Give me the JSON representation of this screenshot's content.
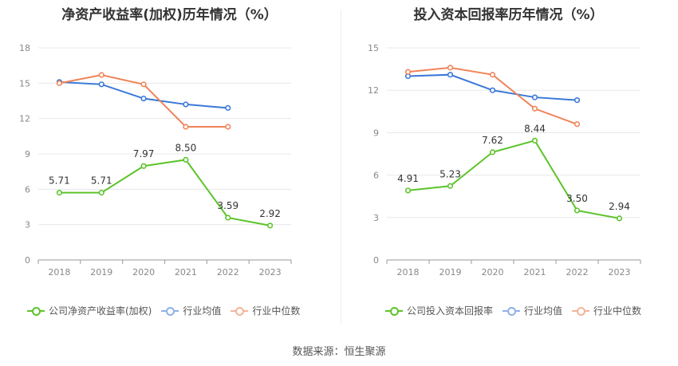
{
  "source_text": "数据来源：恒生聚源",
  "colors": {
    "company": "#5cc42b",
    "avg": "#3a78d8",
    "median": "#f0845a",
    "grid": "#e8e8e8",
    "axis": "#999999",
    "tick": "#888888"
  },
  "chart_data": [
    {
      "type": "line",
      "title": "净资产收益率(加权)历年情况（%）",
      "categories": [
        "2018",
        "2019",
        "2020",
        "2021",
        "2022",
        "2023"
      ],
      "ylim": [
        0,
        18
      ],
      "yticks": [
        0,
        3,
        6,
        9,
        12,
        15,
        18
      ],
      "grid": true,
      "legend_position": "bottom",
      "series": [
        {
          "name": "公司净资产收益率(加权)",
          "key": "company",
          "values": [
            5.71,
            5.71,
            7.97,
            8.5,
            3.59,
            2.92
          ],
          "labels": [
            "5.71",
            "5.71",
            "7.97",
            "8.50",
            "3.59",
            "2.92"
          ]
        },
        {
          "name": "行业均值",
          "key": "avg",
          "values": [
            15.1,
            14.9,
            13.7,
            13.2,
            12.9,
            null
          ]
        },
        {
          "name": "行业中位数",
          "key": "median",
          "values": [
            15.0,
            15.7,
            14.9,
            11.3,
            11.3,
            null
          ]
        }
      ]
    },
    {
      "type": "line",
      "title": "投入资本回报率历年情况（%）",
      "categories": [
        "2018",
        "2019",
        "2020",
        "2021",
        "2022",
        "2023"
      ],
      "ylim": [
        0,
        15
      ],
      "yticks": [
        0,
        3,
        6,
        9,
        12,
        15
      ],
      "grid": true,
      "legend_position": "bottom",
      "series": [
        {
          "name": "公司投入资本回报率",
          "key": "company",
          "values": [
            4.91,
            5.23,
            7.62,
            8.44,
            3.5,
            2.94
          ],
          "labels": [
            "4.91",
            "5.23",
            "7.62",
            "8.44",
            "3.50",
            "2.94"
          ]
        },
        {
          "name": "行业均值",
          "key": "avg",
          "values": [
            13.0,
            13.1,
            12.0,
            11.5,
            11.3,
            null
          ]
        },
        {
          "name": "行业中位数",
          "key": "median",
          "values": [
            13.3,
            13.6,
            13.1,
            10.7,
            9.6,
            null
          ]
        }
      ]
    }
  ]
}
